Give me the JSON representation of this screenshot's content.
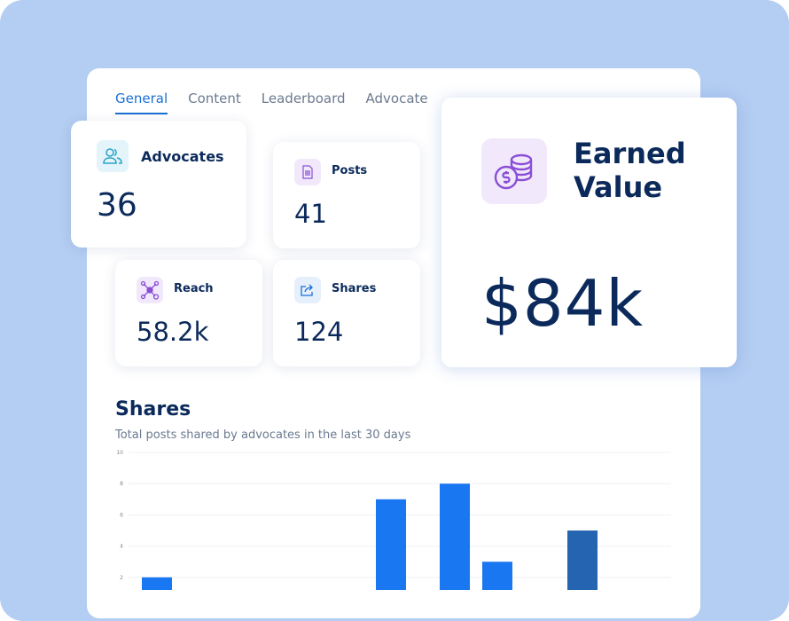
{
  "tabs": [
    "General",
    "Content",
    "Leaderboard",
    "Advocate"
  ],
  "stats": {
    "advocates": {
      "label": "Advocates",
      "value": "36"
    },
    "posts": {
      "label": "Posts",
      "value": "41"
    },
    "reach": {
      "label": "Reach",
      "value": "58.2k"
    },
    "shares": {
      "label": "Shares",
      "value": "124"
    },
    "earned": {
      "label_line1": "Earned",
      "label_line2": "Value",
      "value": "$84k"
    }
  },
  "shares_section": {
    "title": "Shares",
    "subtitle": "Total posts shared by advocates in the last 30 days"
  },
  "chart_data": {
    "type": "bar",
    "title": "Shares",
    "ylim": [
      0,
      10
    ],
    "yticks": [
      "10",
      "8",
      "6",
      "4",
      "2"
    ],
    "grid": true,
    "values": [
      0,
      2,
      0,
      0,
      0,
      0,
      0,
      0,
      0,
      0,
      0,
      0,
      7,
      0,
      0,
      8,
      0,
      3,
      0,
      0,
      0,
      5,
      0,
      0,
      0
    ],
    "highlight_index": 21,
    "colors": {
      "bar": "#1a77f2",
      "highlight": "#2464b0"
    }
  }
}
